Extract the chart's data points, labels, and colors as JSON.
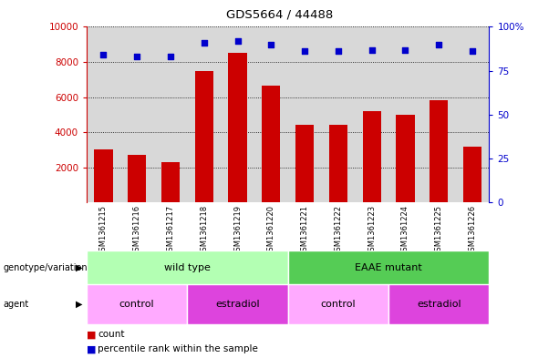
{
  "title": "GDS5664 / 44488",
  "samples": [
    "GSM1361215",
    "GSM1361216",
    "GSM1361217",
    "GSM1361218",
    "GSM1361219",
    "GSM1361220",
    "GSM1361221",
    "GSM1361222",
    "GSM1361223",
    "GSM1361224",
    "GSM1361225",
    "GSM1361226"
  ],
  "counts": [
    3000,
    2700,
    2300,
    7500,
    8500,
    6650,
    4400,
    4400,
    5200,
    5000,
    5800,
    3150
  ],
  "percentiles": [
    84,
    83,
    83,
    91,
    92,
    90,
    86,
    86,
    87,
    87,
    90,
    86
  ],
  "bar_color": "#cc0000",
  "dot_color": "#0000cc",
  "left_yaxis_color": "#cc0000",
  "right_yaxis_color": "#0000cc",
  "ylim_left": [
    0,
    10000
  ],
  "ylim_right": [
    0,
    100
  ],
  "yticks_left": [
    2000,
    4000,
    6000,
    8000,
    10000
  ],
  "ytick_labels_left": [
    "2000",
    "4000",
    "6000",
    "8000",
    "10000"
  ],
  "yticks_right": [
    0,
    25,
    50,
    75,
    100
  ],
  "ytick_labels_right": [
    "0",
    "25",
    "50",
    "75",
    "100%"
  ],
  "genotype_rows": [
    {
      "label": "wild type",
      "start": 0,
      "end": 6,
      "color": "#b3ffb3"
    },
    {
      "label": "EAAE mutant",
      "start": 6,
      "end": 12,
      "color": "#55cc55"
    }
  ],
  "agent_rows": [
    {
      "label": "control",
      "start": 0,
      "end": 3,
      "color": "#ffaaff"
    },
    {
      "label": "estradiol",
      "start": 3,
      "end": 6,
      "color": "#dd44dd"
    },
    {
      "label": "control",
      "start": 6,
      "end": 9,
      "color": "#ffaaff"
    },
    {
      "label": "estradiol",
      "start": 9,
      "end": 12,
      "color": "#dd44dd"
    }
  ],
  "row_label_geno": "genotype/variation",
  "row_label_agent": "agent",
  "legend_count": "count",
  "legend_percentile": "percentile rank within the sample",
  "plot_bg": "#d8d8d8",
  "xtick_bg": "#cccccc"
}
